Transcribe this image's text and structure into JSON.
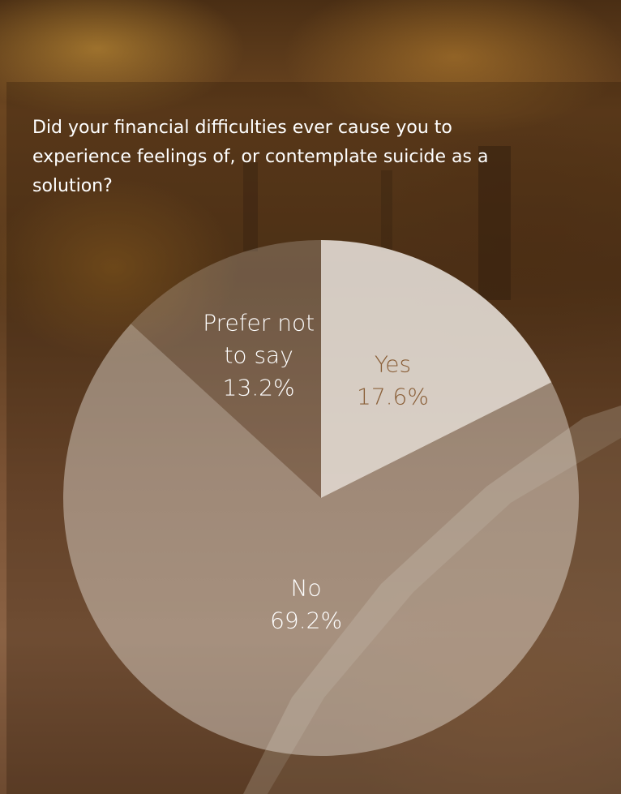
{
  "question": "Did your financial difficulties ever cause you to experience feelings of, or contemplate suicide as a solution?",
  "colors": {
    "slice_fill": "#f3eee8",
    "label_dark": "#8a5f38",
    "label_light": "#ffffff"
  },
  "chart_data": {
    "type": "pie",
    "start_angle_deg": 0,
    "direction": "clockwise",
    "slices": [
      {
        "label_lines": [
          "Yes"
        ],
        "percent_label": "17.6%",
        "value": 17.6,
        "opacity": 0.82,
        "label_color": "#8a5f38"
      },
      {
        "label_lines": [
          "No"
        ],
        "percent_label": "69.2%",
        "value": 69.2,
        "opacity": 0.42,
        "label_color": "#ffffff"
      },
      {
        "label_lines": [
          "Prefer not",
          "to say"
        ],
        "percent_label": "13.2%",
        "value": 13.2,
        "opacity": 0.22,
        "label_color": "#ffffff"
      }
    ]
  }
}
